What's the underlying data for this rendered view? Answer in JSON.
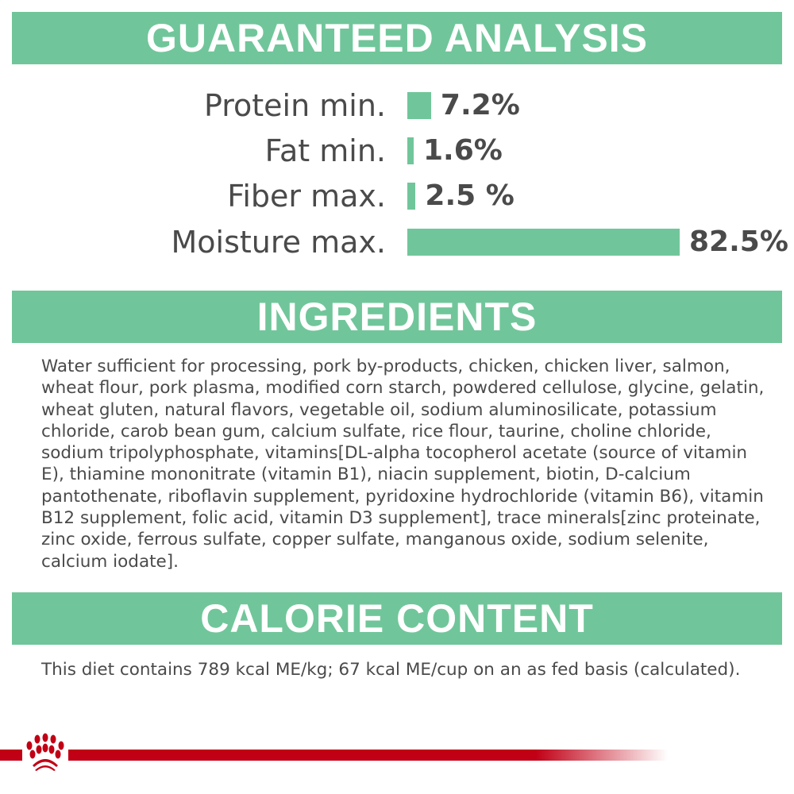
{
  "analysis": {
    "title": "GUARANTEED ANALYSIS",
    "items": [
      {
        "label": "Protein min.",
        "value_text": "7.2%",
        "percent": 7.2
      },
      {
        "label": "Fat min.",
        "value_text": "1.6%",
        "percent": 1.6
      },
      {
        "label": "Fiber max.",
        "value_text": "2.5 %",
        "percent": 2.5
      },
      {
        "label": "Moisture max.",
        "value_text": "82.5%",
        "percent": 82.5
      }
    ],
    "bar_color": "#70c69a"
  },
  "ingredients": {
    "title": "INGREDIENTS",
    "text": "Water sufficient for processing, pork by-products, chicken, chicken liver, salmon, wheat flour, pork plasma, modified corn starch, powdered cellulose, glycine, gelatin, wheat gluten, natural flavors, vegetable oil, sodium aluminosilicate, potassium chloride, carob bean gum, calcium sulfate, rice flour, taurine, choline chloride, sodium tripolyphosphate, vitamins[DL-alpha tocopherol acetate (source of vitamin E), thiamine mononitrate (vitamin B1), niacin supplement, biotin, D-calcium pantothenate, riboflavin supplement, pyridoxine hydrochloride (vitamin B6), vitamin B12 supplement, folic acid, vitamin D3 supplement], trace minerals[zinc proteinate, zinc oxide, ferrous sulfate, copper sulfate, manganous oxide, sodium selenite, calcium iodate]."
  },
  "calorie": {
    "title": "CALORIE CONTENT",
    "text": "This diet contains 789 kcal ME/kg; 67 kcal ME/cup on an as fed basis (calculated)."
  },
  "brand": {
    "logo": "royal-canin-crown-logo",
    "color": "#c10016"
  }
}
